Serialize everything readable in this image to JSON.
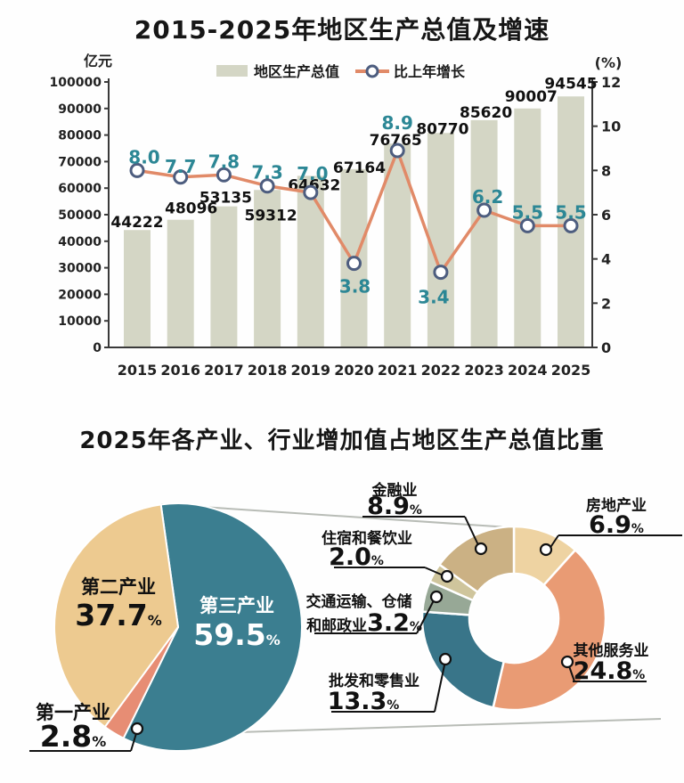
{
  "chart_data": [
    {
      "type": "bar",
      "title": "2015-2025年地区生产总值及增速",
      "unit_left": "亿元",
      "unit_right": "(%)",
      "categories": [
        "2015",
        "2016",
        "2017",
        "2018",
        "2019",
        "2020",
        "2021",
        "2022",
        "2023",
        "2024",
        "2025"
      ],
      "series": [
        {
          "name": "地区生产总值",
          "type": "bar",
          "axis": "left",
          "values": [
            44222,
            48096,
            53135,
            59312,
            64632,
            67164,
            76765,
            80770,
            85620,
            90007,
            94545
          ],
          "color": "#d4d6c5"
        },
        {
          "name": "比上年增长",
          "type": "line",
          "axis": "right",
          "values": [
            8.0,
            7.7,
            7.8,
            7.3,
            7.0,
            3.8,
            8.9,
            3.4,
            6.2,
            5.5,
            5.5
          ],
          "color": "#e18a68",
          "marker_fill": "#ffffff",
          "marker_stroke": "#4d5d7f",
          "label_color": "#2c8795"
        }
      ],
      "y_left": {
        "min": 0,
        "max": 100000,
        "step": 10000,
        "ticks": [
          0,
          10000,
          20000,
          30000,
          40000,
          50000,
          60000,
          70000,
          80000,
          90000,
          100000
        ]
      },
      "y_right": {
        "min": 0,
        "max": 12,
        "step": 2,
        "ticks": [
          0,
          2,
          4,
          6,
          8,
          10,
          12
        ]
      },
      "axis_color": "#3a3a3a",
      "grid": false,
      "legend_position": "top"
    },
    {
      "type": "pie",
      "title": "2025年各产业、行业增加值占地区生产总值比重",
      "pie": {
        "start_angle": -8,
        "slices": [
          {
            "label": "第三产业",
            "value": 59.5,
            "color": "#3b7e90",
            "text_color": "#ffffff"
          },
          {
            "label": "第一产业",
            "value": 2.8,
            "color": "#e78d74",
            "text_color": "#111111"
          },
          {
            "label": "第二产业",
            "value": 37.7,
            "color": "#edca90",
            "text_color": "#111111"
          }
        ]
      },
      "donut": {
        "start_angle": 0,
        "slices": [
          {
            "label": "房地产业",
            "value": 6.9,
            "color": "#eed3a2"
          },
          {
            "label": "其他服务业",
            "value": 24.8,
            "color": "#e99b74"
          },
          {
            "label": "批发和零售业",
            "value": 13.3,
            "color": "#397589"
          },
          {
            "label": "交通运输、仓储和邮政业",
            "value": 3.2,
            "color": "#97a896",
            "label_lines": [
              "交通运输、仓储",
              "和邮政业"
            ]
          },
          {
            "label": "住宿和餐饮业",
            "value": 2.0,
            "color": "#cfc59c"
          },
          {
            "label": "金融业",
            "value": 8.9,
            "color": "#cbb184"
          }
        ]
      },
      "connector_color": "#b8bcb6",
      "leader_color": "#111111"
    }
  ]
}
